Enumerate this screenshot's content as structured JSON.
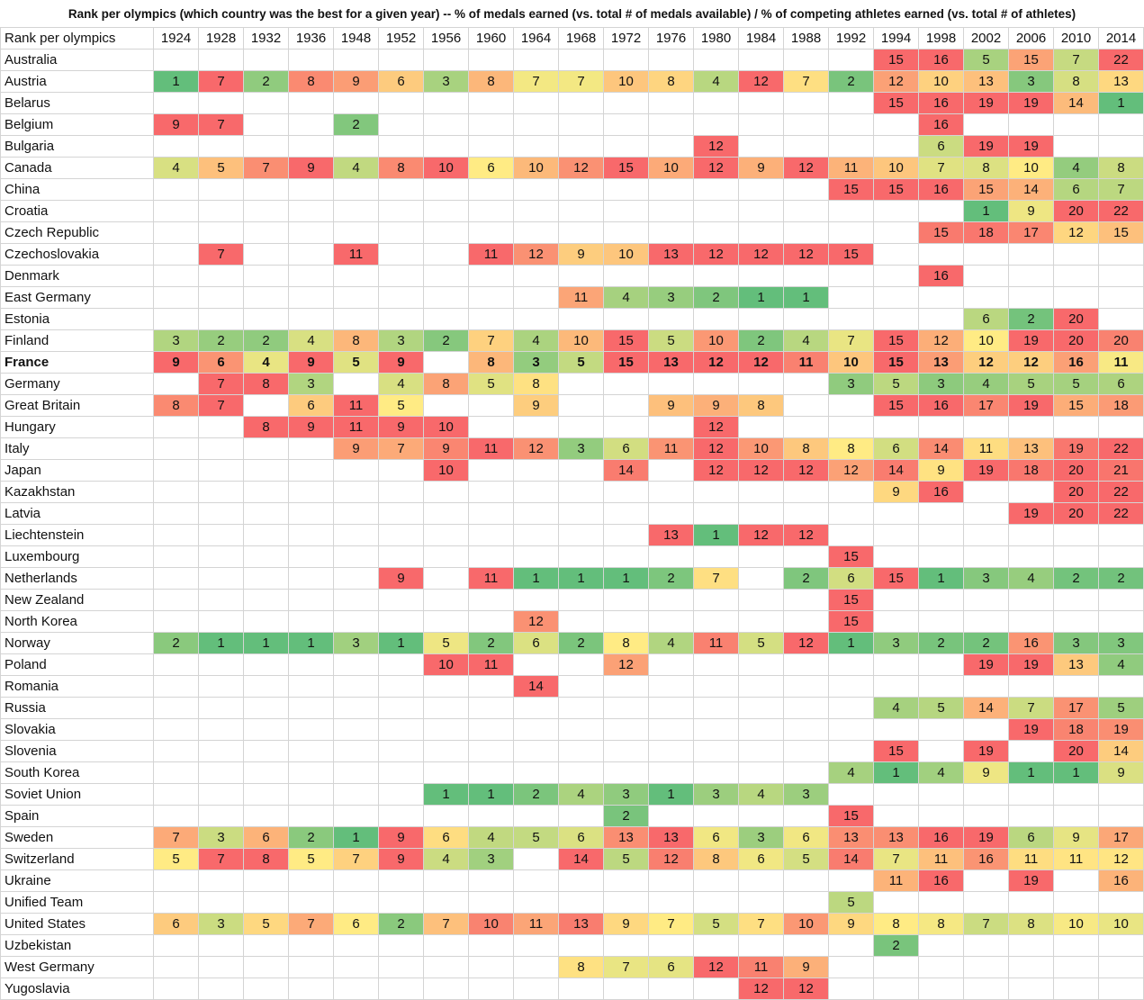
{
  "chart_data": {
    "type": "heatmap",
    "title": "Rank per olympics  (which country was the best for a given year) -- % of medals earned (vs. total # of medals available) / % of competing athletes earned (vs. total # of athletes)",
    "corner_label": "Rank per olympics",
    "years": [
      "1924",
      "1928",
      "1932",
      "1936",
      "1948",
      "1952",
      "1956",
      "1960",
      "1964",
      "1968",
      "1972",
      "1976",
      "1980",
      "1984",
      "1988",
      "1992",
      "1994",
      "1998",
      "2002",
      "2006",
      "2010",
      "2014"
    ],
    "highlight_row": "France",
    "color_scale": {
      "best": "#63be7b",
      "mid": "#ffeb84",
      "worst": "#f8696b"
    },
    "rows": [
      {
        "country": "Australia",
        "ranks": [
          null,
          null,
          null,
          null,
          null,
          null,
          null,
          null,
          null,
          null,
          null,
          null,
          null,
          null,
          null,
          null,
          15,
          16,
          5,
          15,
          7,
          22
        ]
      },
      {
        "country": "Austria",
        "ranks": [
          1,
          7,
          2,
          8,
          9,
          6,
          3,
          8,
          7,
          7,
          10,
          8,
          4,
          12,
          7,
          2,
          12,
          10,
          13,
          3,
          8,
          13
        ]
      },
      {
        "country": "Belarus",
        "ranks": [
          null,
          null,
          null,
          null,
          null,
          null,
          null,
          null,
          null,
          null,
          null,
          null,
          null,
          null,
          null,
          null,
          15,
          16,
          19,
          19,
          14,
          1
        ]
      },
      {
        "country": "Belgium",
        "ranks": [
          9,
          7,
          null,
          null,
          2,
          null,
          null,
          null,
          null,
          null,
          null,
          null,
          null,
          null,
          null,
          null,
          null,
          16,
          null,
          null,
          null,
          null
        ]
      },
      {
        "country": "Bulgaria",
        "ranks": [
          null,
          null,
          null,
          null,
          null,
          null,
          null,
          null,
          null,
          null,
          null,
          null,
          12,
          null,
          null,
          null,
          null,
          6,
          19,
          19,
          null,
          null
        ]
      },
      {
        "country": "Canada",
        "ranks": [
          4,
          5,
          7,
          9,
          4,
          8,
          10,
          6,
          10,
          12,
          15,
          10,
          12,
          9,
          12,
          11,
          10,
          7,
          8,
          10,
          4,
          8
        ]
      },
      {
        "country": "China",
        "ranks": [
          null,
          null,
          null,
          null,
          null,
          null,
          null,
          null,
          null,
          null,
          null,
          null,
          null,
          null,
          null,
          15,
          15,
          16,
          15,
          14,
          6,
          7
        ]
      },
      {
        "country": "Croatia",
        "ranks": [
          null,
          null,
          null,
          null,
          null,
          null,
          null,
          null,
          null,
          null,
          null,
          null,
          null,
          null,
          null,
          null,
          null,
          null,
          1,
          9,
          20,
          22
        ]
      },
      {
        "country": "Czech Republic",
        "ranks": [
          null,
          null,
          null,
          null,
          null,
          null,
          null,
          null,
          null,
          null,
          null,
          null,
          null,
          null,
          null,
          null,
          null,
          15,
          18,
          17,
          12,
          15
        ]
      },
      {
        "country": "Czechoslovakia",
        "ranks": [
          null,
          7,
          null,
          null,
          11,
          null,
          null,
          11,
          12,
          9,
          10,
          13,
          12,
          12,
          12,
          15,
          null,
          null,
          null,
          null,
          null,
          null
        ]
      },
      {
        "country": "Denmark",
        "ranks": [
          null,
          null,
          null,
          null,
          null,
          null,
          null,
          null,
          null,
          null,
          null,
          null,
          null,
          null,
          null,
          null,
          null,
          16,
          null,
          null,
          null,
          null
        ]
      },
      {
        "country": "East Germany",
        "ranks": [
          null,
          null,
          null,
          null,
          null,
          null,
          null,
          null,
          null,
          11,
          4,
          3,
          2,
          1,
          1,
          null,
          null,
          null,
          null,
          null,
          null,
          null
        ]
      },
      {
        "country": "Estonia",
        "ranks": [
          null,
          null,
          null,
          null,
          null,
          null,
          null,
          null,
          null,
          null,
          null,
          null,
          null,
          null,
          null,
          null,
          null,
          null,
          6,
          2,
          20,
          null
        ]
      },
      {
        "country": "Finland",
        "ranks": [
          3,
          2,
          2,
          4,
          8,
          3,
          2,
          7,
          4,
          10,
          15,
          5,
          10,
          2,
          4,
          7,
          15,
          12,
          10,
          19,
          20,
          20
        ]
      },
      {
        "country": "France",
        "ranks": [
          9,
          6,
          4,
          9,
          5,
          9,
          null,
          8,
          3,
          5,
          15,
          13,
          12,
          12,
          11,
          10,
          15,
          13,
          12,
          12,
          16,
          11
        ]
      },
      {
        "country": "Germany",
        "ranks": [
          null,
          7,
          8,
          3,
          null,
          4,
          8,
          5,
          8,
          null,
          null,
          null,
          null,
          null,
          null,
          3,
          5,
          3,
          4,
          5,
          5,
          6
        ]
      },
      {
        "country": "Great Britain",
        "ranks": [
          8,
          7,
          null,
          6,
          11,
          5,
          null,
          null,
          9,
          null,
          null,
          9,
          9,
          8,
          null,
          null,
          15,
          16,
          17,
          19,
          15,
          18
        ]
      },
      {
        "country": "Hungary",
        "ranks": [
          null,
          null,
          8,
          9,
          11,
          9,
          10,
          null,
          null,
          null,
          null,
          null,
          12,
          null,
          null,
          null,
          null,
          null,
          null,
          null,
          null,
          null
        ]
      },
      {
        "country": "Italy",
        "ranks": [
          null,
          null,
          null,
          null,
          9,
          7,
          9,
          11,
          12,
          3,
          6,
          11,
          12,
          10,
          8,
          8,
          6,
          14,
          11,
          13,
          19,
          22
        ]
      },
      {
        "country": "Japan",
        "ranks": [
          null,
          null,
          null,
          null,
          null,
          null,
          10,
          null,
          null,
          null,
          14,
          null,
          12,
          12,
          12,
          12,
          14,
          9,
          19,
          18,
          20,
          21
        ]
      },
      {
        "country": "Kazakhstan",
        "ranks": [
          null,
          null,
          null,
          null,
          null,
          null,
          null,
          null,
          null,
          null,
          null,
          null,
          null,
          null,
          null,
          null,
          9,
          16,
          null,
          null,
          20,
          22
        ]
      },
      {
        "country": "Latvia",
        "ranks": [
          null,
          null,
          null,
          null,
          null,
          null,
          null,
          null,
          null,
          null,
          null,
          null,
          null,
          null,
          null,
          null,
          null,
          null,
          null,
          19,
          20,
          22
        ]
      },
      {
        "country": "Liechtenstein",
        "ranks": [
          null,
          null,
          null,
          null,
          null,
          null,
          null,
          null,
          null,
          null,
          null,
          13,
          1,
          12,
          12,
          null,
          null,
          null,
          null,
          null,
          null,
          null
        ]
      },
      {
        "country": "Luxembourg",
        "ranks": [
          null,
          null,
          null,
          null,
          null,
          null,
          null,
          null,
          null,
          null,
          null,
          null,
          null,
          null,
          null,
          15,
          null,
          null,
          null,
          null,
          null,
          null
        ]
      },
      {
        "country": "Netherlands",
        "ranks": [
          null,
          null,
          null,
          null,
          null,
          9,
          null,
          11,
          1,
          1,
          1,
          2,
          7,
          null,
          2,
          6,
          15,
          1,
          3,
          4,
          2,
          2
        ]
      },
      {
        "country": "New Zealand",
        "ranks": [
          null,
          null,
          null,
          null,
          null,
          null,
          null,
          null,
          null,
          null,
          null,
          null,
          null,
          null,
          null,
          15,
          null,
          null,
          null,
          null,
          null,
          null
        ]
      },
      {
        "country": "North Korea",
        "ranks": [
          null,
          null,
          null,
          null,
          null,
          null,
          null,
          null,
          12,
          null,
          null,
          null,
          null,
          null,
          null,
          15,
          null,
          null,
          null,
          null,
          null,
          null
        ]
      },
      {
        "country": "Norway",
        "ranks": [
          2,
          1,
          1,
          1,
          3,
          1,
          5,
          2,
          6,
          2,
          8,
          4,
          11,
          5,
          12,
          1,
          3,
          2,
          2,
          16,
          3,
          3
        ]
      },
      {
        "country": "Poland",
        "ranks": [
          null,
          null,
          null,
          null,
          null,
          null,
          10,
          11,
          null,
          null,
          12,
          null,
          null,
          null,
          null,
          null,
          null,
          null,
          19,
          19,
          13,
          4
        ]
      },
      {
        "country": "Romania",
        "ranks": [
          null,
          null,
          null,
          null,
          null,
          null,
          null,
          null,
          14,
          null,
          null,
          null,
          null,
          null,
          null,
          null,
          null,
          null,
          null,
          null,
          null,
          null
        ]
      },
      {
        "country": "Russia",
        "ranks": [
          null,
          null,
          null,
          null,
          null,
          null,
          null,
          null,
          null,
          null,
          null,
          null,
          null,
          null,
          null,
          null,
          4,
          5,
          14,
          7,
          17,
          5
        ]
      },
      {
        "country": "Slovakia",
        "ranks": [
          null,
          null,
          null,
          null,
          null,
          null,
          null,
          null,
          null,
          null,
          null,
          null,
          null,
          null,
          null,
          null,
          null,
          null,
          null,
          19,
          18,
          19
        ]
      },
      {
        "country": "Slovenia",
        "ranks": [
          null,
          null,
          null,
          null,
          null,
          null,
          null,
          null,
          null,
          null,
          null,
          null,
          null,
          null,
          null,
          null,
          15,
          null,
          19,
          null,
          20,
          14
        ]
      },
      {
        "country": "South Korea",
        "ranks": [
          null,
          null,
          null,
          null,
          null,
          null,
          null,
          null,
          null,
          null,
          null,
          null,
          null,
          null,
          null,
          4,
          1,
          4,
          9,
          1,
          1,
          9
        ]
      },
      {
        "country": "Soviet Union",
        "ranks": [
          null,
          null,
          null,
          null,
          null,
          null,
          1,
          1,
          2,
          4,
          3,
          1,
          3,
          4,
          3,
          null,
          null,
          null,
          null,
          null,
          null,
          null
        ]
      },
      {
        "country": "Spain",
        "ranks": [
          null,
          null,
          null,
          null,
          null,
          null,
          null,
          null,
          null,
          null,
          2,
          null,
          null,
          null,
          null,
          15,
          null,
          null,
          null,
          null,
          null,
          null
        ]
      },
      {
        "country": "Sweden",
        "ranks": [
          7,
          3,
          6,
          2,
          1,
          9,
          6,
          4,
          5,
          6,
          13,
          13,
          6,
          3,
          6,
          13,
          13,
          16,
          19,
          6,
          9,
          17
        ]
      },
      {
        "country": "Switzerland",
        "ranks": [
          5,
          7,
          8,
          5,
          7,
          9,
          4,
          3,
          null,
          14,
          5,
          12,
          8,
          6,
          5,
          14,
          7,
          11,
          16,
          11,
          11,
          12
        ]
      },
      {
        "country": "Ukraine",
        "ranks": [
          null,
          null,
          null,
          null,
          null,
          null,
          null,
          null,
          null,
          null,
          null,
          null,
          null,
          null,
          null,
          null,
          11,
          16,
          null,
          19,
          null,
          16
        ]
      },
      {
        "country": "Unified Team",
        "ranks": [
          null,
          null,
          null,
          null,
          null,
          null,
          null,
          null,
          null,
          null,
          null,
          null,
          null,
          null,
          null,
          5,
          null,
          null,
          null,
          null,
          null,
          null
        ]
      },
      {
        "country": "United States",
        "ranks": [
          6,
          3,
          5,
          7,
          6,
          2,
          7,
          10,
          11,
          13,
          9,
          7,
          5,
          7,
          10,
          9,
          8,
          8,
          7,
          8,
          10,
          10
        ]
      },
      {
        "country": "Uzbekistan",
        "ranks": [
          null,
          null,
          null,
          null,
          null,
          null,
          null,
          null,
          null,
          null,
          null,
          null,
          null,
          null,
          null,
          null,
          2,
          null,
          null,
          null,
          null,
          null
        ]
      },
      {
        "country": "West Germany",
        "ranks": [
          null,
          null,
          null,
          null,
          null,
          null,
          null,
          null,
          null,
          8,
          7,
          6,
          12,
          11,
          9,
          null,
          null,
          null,
          null,
          null,
          null,
          null
        ]
      },
      {
        "country": "Yugoslavia",
        "ranks": [
          null,
          null,
          null,
          null,
          null,
          null,
          null,
          null,
          null,
          null,
          null,
          null,
          null,
          12,
          12,
          null,
          null,
          null,
          null,
          null,
          null,
          null
        ]
      }
    ]
  }
}
